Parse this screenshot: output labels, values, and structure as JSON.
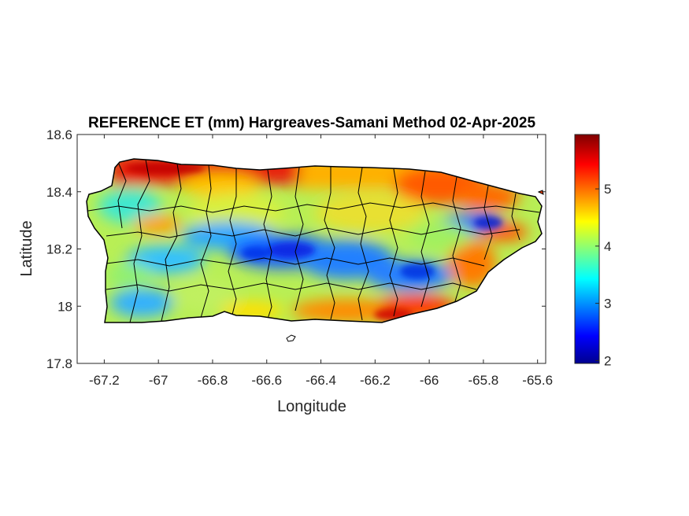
{
  "title": "REFERENCE ET (mm) Hargreaves-Samani Method  02-Apr-2025",
  "map": {
    "xlabel": "Longitude",
    "ylabel": "Latitude",
    "xlim": [
      -67.3,
      -65.57
    ],
    "ylim": [
      17.8,
      18.6
    ],
    "xticks": [
      -67.2,
      -67,
      -66.8,
      -66.6,
      -66.4,
      -66.2,
      -66,
      -65.8,
      -65.6
    ],
    "xtick_labels": [
      "-67.2",
      "-67",
      "-66.8",
      "-66.6",
      "-66.4",
      "-66.2",
      "-66",
      "-65.8",
      "-65.6"
    ],
    "yticks": [
      17.8,
      18,
      18.2,
      18.4,
      18.6
    ],
    "ytick_labels": [
      "17.8",
      "18",
      "18.2",
      "18.4",
      "18.6"
    ],
    "region": "Puerto Rico",
    "overlay": "municipality boundaries (black)"
  },
  "colorbar": {
    "colormap": "jet",
    "range": [
      1.95,
      5.95
    ],
    "ticks": [
      2,
      3,
      4,
      5
    ],
    "tick_labels": [
      "2",
      "3",
      "4",
      "5"
    ],
    "colors": [
      "#00008f",
      "#0000ff",
      "#00ffff",
      "#ffff00",
      "#ff0000",
      "#800000"
    ]
  }
}
